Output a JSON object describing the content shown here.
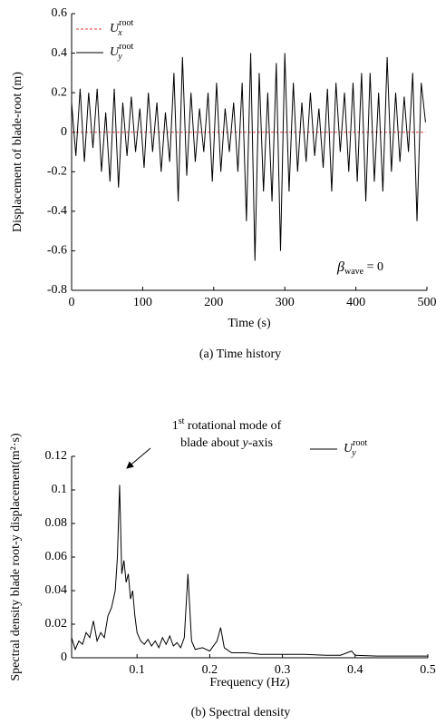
{
  "chart_data": [
    {
      "type": "line",
      "xlabel": "Time (s)",
      "ylabel": "Displacement of blade-root (m)",
      "caption": "(a) Time history",
      "xlim": [
        0,
        500
      ],
      "ylim": [
        -0.8,
        0.6
      ],
      "xticks": [
        0,
        100,
        200,
        300,
        400,
        500
      ],
      "yticks": [
        0.6,
        0.4,
        0.2,
        0,
        -0.2,
        -0.4,
        -0.6,
        -0.8
      ],
      "legend": "upper left",
      "annotation": {
        "symbol": "β",
        "sub": "wave",
        "text": " = 0"
      },
      "x": [
        0,
        6,
        12,
        18,
        24,
        30,
        36,
        42,
        48,
        54,
        60,
        66,
        72,
        78,
        84,
        90,
        96,
        102,
        108,
        114,
        120,
        126,
        132,
        138,
        144,
        150,
        156,
        162,
        168,
        174,
        180,
        186,
        192,
        198,
        204,
        210,
        216,
        222,
        228,
        234,
        240,
        246,
        252,
        258,
        264,
        270,
        276,
        282,
        288,
        294,
        300,
        306,
        312,
        318,
        324,
        330,
        336,
        342,
        348,
        354,
        360,
        366,
        372,
        378,
        384,
        390,
        396,
        402,
        408,
        414,
        420,
        426,
        432,
        438,
        444,
        450,
        456,
        462,
        468,
        474,
        480,
        486,
        492,
        498
      ],
      "series": [
        {
          "name": "U",
          "name_sub": "x",
          "name_sup": "root",
          "color": "#e0403a",
          "linestyle": "dashed",
          "values": [
            0,
            0,
            0,
            0,
            0,
            0,
            0,
            0,
            0,
            0,
            0,
            0,
            0,
            0,
            0,
            0,
            0,
            0,
            0,
            0,
            0,
            0,
            0,
            0,
            0,
            0,
            0,
            0,
            0,
            0,
            0,
            0,
            0,
            0,
            0,
            0,
            0,
            0,
            0,
            0,
            0,
            0,
            0,
            0,
            0,
            0,
            0,
            0,
            0,
            0,
            0,
            0,
            0,
            0,
            0,
            0,
            0,
            0,
            0,
            0,
            0,
            0,
            0,
            0,
            0,
            0,
            0,
            0,
            0,
            0,
            0,
            0,
            0,
            0,
            0,
            0,
            0,
            0,
            0,
            0,
            0,
            0,
            0,
            0
          ]
        },
        {
          "name": "U",
          "name_sub": "y",
          "name_sup": "root",
          "color": "#000000",
          "linestyle": "solid",
          "values": [
            0.15,
            -0.12,
            0.22,
            -0.15,
            0.2,
            -0.08,
            0.22,
            -0.2,
            0.1,
            -0.25,
            0.22,
            -0.28,
            0.15,
            -0.12,
            0.18,
            -0.1,
            0.12,
            -0.18,
            0.2,
            -0.1,
            0.15,
            -0.2,
            0.1,
            -0.15,
            0.3,
            -0.35,
            0.38,
            -0.22,
            0.2,
            -0.15,
            0.12,
            -0.1,
            0.2,
            -0.25,
            0.25,
            -0.2,
            0.12,
            -0.1,
            0.15,
            -0.2,
            0.25,
            -0.45,
            0.4,
            -0.65,
            0.3,
            -0.3,
            0.2,
            -0.35,
            0.35,
            -0.6,
            0.4,
            -0.3,
            0.25,
            -0.2,
            0.15,
            -0.15,
            0.2,
            -0.12,
            0.12,
            -0.18,
            0.22,
            -0.3,
            0.25,
            -0.1,
            0.2,
            -0.2,
            0.25,
            -0.25,
            0.3,
            -0.35,
            0.3,
            -0.25,
            0.2,
            -0.3,
            0.38,
            -0.2,
            0.2,
            -0.15,
            0.18,
            -0.1,
            0.3,
            -0.45,
            0.25,
            0.05
          ]
        }
      ]
    },
    {
      "type": "line",
      "xlabel": "Frequency (Hz)",
      "ylabel": "Spectral density blade root-y displacement(m²·s)",
      "caption": "(b) Spectral density",
      "xlim": [
        0.01,
        0.5
      ],
      "ylim": [
        0,
        0.12
      ],
      "xticks": [
        0.1,
        0.2,
        0.3,
        0.4,
        0.5
      ],
      "yticks": [
        0,
        0.02,
        0.04,
        0.06,
        0.08,
        0.1,
        0.12
      ],
      "legend": "upper right",
      "annotation_lines": [
        [
          "1",
          "st",
          " rotational mode of"
        ],
        [
          "blade about ",
          "y",
          "-axis"
        ]
      ],
      "x": [
        0.01,
        0.015,
        0.02,
        0.025,
        0.03,
        0.035,
        0.04,
        0.045,
        0.05,
        0.055,
        0.06,
        0.065,
        0.07,
        0.073,
        0.076,
        0.079,
        0.082,
        0.085,
        0.088,
        0.091,
        0.094,
        0.097,
        0.1,
        0.105,
        0.11,
        0.115,
        0.12,
        0.125,
        0.13,
        0.135,
        0.14,
        0.145,
        0.15,
        0.155,
        0.16,
        0.165,
        0.17,
        0.175,
        0.18,
        0.19,
        0.2,
        0.21,
        0.215,
        0.22,
        0.23,
        0.25,
        0.27,
        0.3,
        0.33,
        0.36,
        0.38,
        0.395,
        0.4,
        0.43,
        0.46,
        0.5
      ],
      "series": [
        {
          "name": "U",
          "name_sub": "y",
          "name_sup": "root",
          "color": "#000000",
          "linestyle": "solid",
          "values": [
            0.012,
            0.005,
            0.01,
            0.008,
            0.015,
            0.012,
            0.022,
            0.01,
            0.015,
            0.012,
            0.025,
            0.03,
            0.04,
            0.06,
            0.103,
            0.05,
            0.058,
            0.045,
            0.05,
            0.035,
            0.04,
            0.025,
            0.015,
            0.01,
            0.008,
            0.011,
            0.007,
            0.01,
            0.006,
            0.012,
            0.008,
            0.013,
            0.007,
            0.009,
            0.006,
            0.012,
            0.05,
            0.01,
            0.005,
            0.006,
            0.004,
            0.01,
            0.018,
            0.006,
            0.003,
            0.003,
            0.002,
            0.002,
            0.002,
            0.0015,
            0.0015,
            0.004,
            0.0015,
            0.001,
            0.001,
            0.001
          ]
        }
      ]
    }
  ]
}
